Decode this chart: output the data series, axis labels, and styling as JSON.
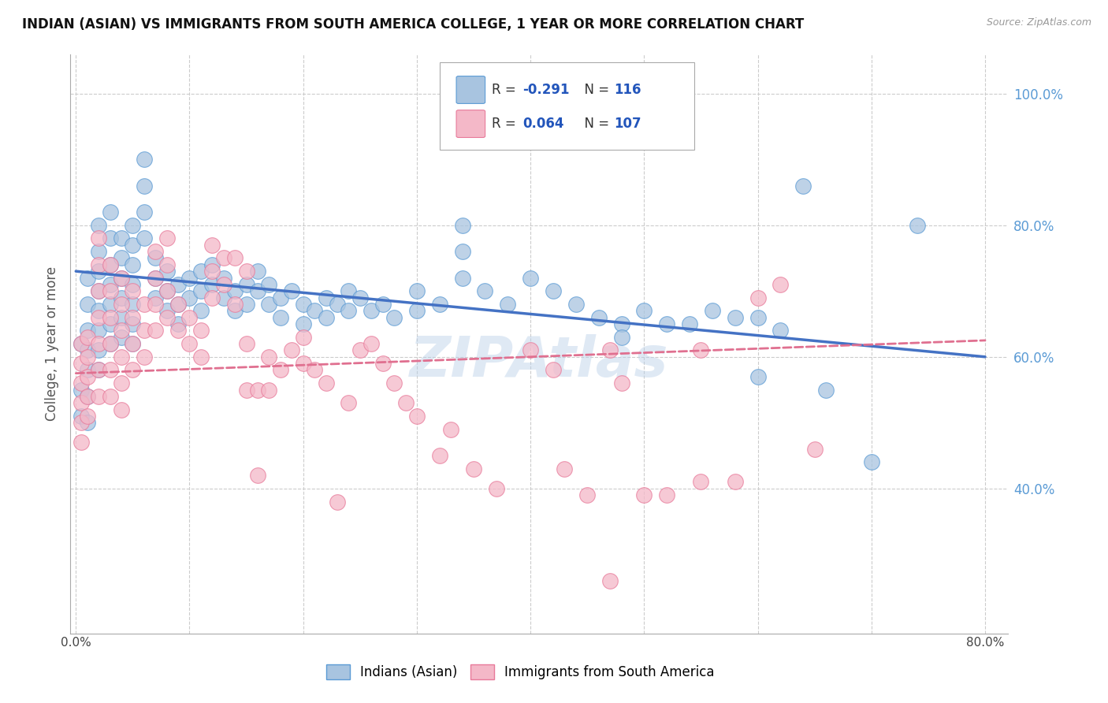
{
  "title": "INDIAN (ASIAN) VS IMMIGRANTS FROM SOUTH AMERICA COLLEGE, 1 YEAR OR MORE CORRELATION CHART",
  "source": "Source: ZipAtlas.com",
  "ylabel": "College, 1 year or more",
  "ytick_labels": [
    "40.0%",
    "60.0%",
    "80.0%",
    "100.0%"
  ],
  "ytick_vals": [
    0.4,
    0.6,
    0.8,
    1.0
  ],
  "xtick_labels": [
    "0.0%",
    "",
    "",
    "",
    "",
    "",
    "",
    "",
    "80.0%"
  ],
  "xtick_vals": [
    0.0,
    0.1,
    0.2,
    0.3,
    0.4,
    0.5,
    0.6,
    0.7,
    0.8
  ],
  "xrange": [
    -0.005,
    0.82
  ],
  "yrange": [
    0.18,
    1.06
  ],
  "legend_entries": [
    {
      "label": "Indians (Asian)",
      "color_fill": "#a8c4e0",
      "color_edge": "#5b9bd5",
      "R": "-0.291",
      "N": "116"
    },
    {
      "label": "Immigrants from South America",
      "color_fill": "#f4b8c8",
      "color_edge": "#e87a9a",
      "R": "0.064",
      "N": "107"
    }
  ],
  "trend_blue": {
    "x_start": 0.0,
    "y_start": 0.73,
    "x_end": 0.8,
    "y_end": 0.6,
    "color": "#4472c4"
  },
  "trend_pink": {
    "x_start": 0.0,
    "y_start": 0.575,
    "x_end": 0.8,
    "y_end": 0.625,
    "color": "#e07090"
  },
  "watermark": "ZIPAtlas",
  "blue_dots": [
    [
      0.005,
      0.62
    ],
    [
      0.005,
      0.55
    ],
    [
      0.005,
      0.51
    ],
    [
      0.01,
      0.72
    ],
    [
      0.01,
      0.68
    ],
    [
      0.01,
      0.64
    ],
    [
      0.01,
      0.61
    ],
    [
      0.01,
      0.58
    ],
    [
      0.01,
      0.54
    ],
    [
      0.01,
      0.5
    ],
    [
      0.02,
      0.8
    ],
    [
      0.02,
      0.76
    ],
    [
      0.02,
      0.73
    ],
    [
      0.02,
      0.7
    ],
    [
      0.02,
      0.67
    ],
    [
      0.02,
      0.64
    ],
    [
      0.02,
      0.61
    ],
    [
      0.02,
      0.58
    ],
    [
      0.03,
      0.82
    ],
    [
      0.03,
      0.78
    ],
    [
      0.03,
      0.74
    ],
    [
      0.03,
      0.71
    ],
    [
      0.03,
      0.68
    ],
    [
      0.03,
      0.65
    ],
    [
      0.03,
      0.62
    ],
    [
      0.04,
      0.78
    ],
    [
      0.04,
      0.75
    ],
    [
      0.04,
      0.72
    ],
    [
      0.04,
      0.69
    ],
    [
      0.04,
      0.66
    ],
    [
      0.04,
      0.63
    ],
    [
      0.05,
      0.8
    ],
    [
      0.05,
      0.77
    ],
    [
      0.05,
      0.74
    ],
    [
      0.05,
      0.71
    ],
    [
      0.05,
      0.68
    ],
    [
      0.05,
      0.65
    ],
    [
      0.05,
      0.62
    ],
    [
      0.06,
      0.9
    ],
    [
      0.06,
      0.86
    ],
    [
      0.06,
      0.82
    ],
    [
      0.06,
      0.78
    ],
    [
      0.07,
      0.75
    ],
    [
      0.07,
      0.72
    ],
    [
      0.07,
      0.69
    ],
    [
      0.08,
      0.73
    ],
    [
      0.08,
      0.7
    ],
    [
      0.08,
      0.67
    ],
    [
      0.09,
      0.71
    ],
    [
      0.09,
      0.68
    ],
    [
      0.09,
      0.65
    ],
    [
      0.1,
      0.72
    ],
    [
      0.1,
      0.69
    ],
    [
      0.11,
      0.73
    ],
    [
      0.11,
      0.7
    ],
    [
      0.11,
      0.67
    ],
    [
      0.12,
      0.74
    ],
    [
      0.12,
      0.71
    ],
    [
      0.13,
      0.72
    ],
    [
      0.13,
      0.69
    ],
    [
      0.14,
      0.7
    ],
    [
      0.14,
      0.67
    ],
    [
      0.15,
      0.71
    ],
    [
      0.15,
      0.68
    ],
    [
      0.16,
      0.73
    ],
    [
      0.16,
      0.7
    ],
    [
      0.17,
      0.71
    ],
    [
      0.17,
      0.68
    ],
    [
      0.18,
      0.69
    ],
    [
      0.18,
      0.66
    ],
    [
      0.19,
      0.7
    ],
    [
      0.2,
      0.68
    ],
    [
      0.2,
      0.65
    ],
    [
      0.21,
      0.67
    ],
    [
      0.22,
      0.69
    ],
    [
      0.22,
      0.66
    ],
    [
      0.23,
      0.68
    ],
    [
      0.24,
      0.7
    ],
    [
      0.24,
      0.67
    ],
    [
      0.25,
      0.69
    ],
    [
      0.26,
      0.67
    ],
    [
      0.27,
      0.68
    ],
    [
      0.28,
      0.66
    ],
    [
      0.3,
      0.7
    ],
    [
      0.3,
      0.67
    ],
    [
      0.32,
      0.68
    ],
    [
      0.34,
      0.8
    ],
    [
      0.34,
      0.76
    ],
    [
      0.34,
      0.72
    ],
    [
      0.36,
      0.7
    ],
    [
      0.38,
      0.68
    ],
    [
      0.4,
      0.72
    ],
    [
      0.42,
      0.7
    ],
    [
      0.44,
      0.68
    ],
    [
      0.46,
      0.66
    ],
    [
      0.48,
      0.65
    ],
    [
      0.48,
      0.63
    ],
    [
      0.5,
      0.67
    ],
    [
      0.52,
      0.65
    ],
    [
      0.54,
      0.65
    ],
    [
      0.56,
      0.67
    ],
    [
      0.58,
      0.66
    ],
    [
      0.6,
      0.66
    ],
    [
      0.6,
      0.57
    ],
    [
      0.62,
      0.64
    ],
    [
      0.64,
      0.86
    ],
    [
      0.66,
      0.55
    ],
    [
      0.7,
      0.44
    ],
    [
      0.74,
      0.8
    ]
  ],
  "pink_dots": [
    [
      0.005,
      0.62
    ],
    [
      0.005,
      0.59
    ],
    [
      0.005,
      0.56
    ],
    [
      0.005,
      0.53
    ],
    [
      0.005,
      0.5
    ],
    [
      0.005,
      0.47
    ],
    [
      0.01,
      0.63
    ],
    [
      0.01,
      0.6
    ],
    [
      0.01,
      0.57
    ],
    [
      0.01,
      0.54
    ],
    [
      0.01,
      0.51
    ],
    [
      0.02,
      0.78
    ],
    [
      0.02,
      0.74
    ],
    [
      0.02,
      0.7
    ],
    [
      0.02,
      0.66
    ],
    [
      0.02,
      0.62
    ],
    [
      0.02,
      0.58
    ],
    [
      0.02,
      0.54
    ],
    [
      0.03,
      0.74
    ],
    [
      0.03,
      0.7
    ],
    [
      0.03,
      0.66
    ],
    [
      0.03,
      0.62
    ],
    [
      0.03,
      0.58
    ],
    [
      0.03,
      0.54
    ],
    [
      0.04,
      0.72
    ],
    [
      0.04,
      0.68
    ],
    [
      0.04,
      0.64
    ],
    [
      0.04,
      0.6
    ],
    [
      0.04,
      0.56
    ],
    [
      0.04,
      0.52
    ],
    [
      0.05,
      0.7
    ],
    [
      0.05,
      0.66
    ],
    [
      0.05,
      0.62
    ],
    [
      0.05,
      0.58
    ],
    [
      0.06,
      0.68
    ],
    [
      0.06,
      0.64
    ],
    [
      0.06,
      0.6
    ],
    [
      0.07,
      0.76
    ],
    [
      0.07,
      0.72
    ],
    [
      0.07,
      0.68
    ],
    [
      0.07,
      0.64
    ],
    [
      0.08,
      0.78
    ],
    [
      0.08,
      0.74
    ],
    [
      0.08,
      0.7
    ],
    [
      0.08,
      0.66
    ],
    [
      0.09,
      0.68
    ],
    [
      0.09,
      0.64
    ],
    [
      0.1,
      0.66
    ],
    [
      0.1,
      0.62
    ],
    [
      0.11,
      0.64
    ],
    [
      0.11,
      0.6
    ],
    [
      0.12,
      0.77
    ],
    [
      0.12,
      0.73
    ],
    [
      0.12,
      0.69
    ],
    [
      0.13,
      0.75
    ],
    [
      0.13,
      0.71
    ],
    [
      0.14,
      0.75
    ],
    [
      0.14,
      0.68
    ],
    [
      0.15,
      0.73
    ],
    [
      0.15,
      0.62
    ],
    [
      0.15,
      0.55
    ],
    [
      0.16,
      0.55
    ],
    [
      0.16,
      0.42
    ],
    [
      0.17,
      0.6
    ],
    [
      0.17,
      0.55
    ],
    [
      0.18,
      0.58
    ],
    [
      0.19,
      0.61
    ],
    [
      0.2,
      0.63
    ],
    [
      0.2,
      0.59
    ],
    [
      0.21,
      0.58
    ],
    [
      0.22,
      0.56
    ],
    [
      0.23,
      0.38
    ],
    [
      0.24,
      0.53
    ],
    [
      0.25,
      0.61
    ],
    [
      0.26,
      0.62
    ],
    [
      0.27,
      0.59
    ],
    [
      0.28,
      0.56
    ],
    [
      0.29,
      0.53
    ],
    [
      0.3,
      0.51
    ],
    [
      0.32,
      0.45
    ],
    [
      0.33,
      0.49
    ],
    [
      0.35,
      0.43
    ],
    [
      0.37,
      0.4
    ],
    [
      0.4,
      0.61
    ],
    [
      0.42,
      0.58
    ],
    [
      0.43,
      0.43
    ],
    [
      0.45,
      0.39
    ],
    [
      0.47,
      0.26
    ],
    [
      0.47,
      0.61
    ],
    [
      0.48,
      0.56
    ],
    [
      0.5,
      0.39
    ],
    [
      0.52,
      0.39
    ],
    [
      0.55,
      0.61
    ],
    [
      0.55,
      0.41
    ],
    [
      0.58,
      0.41
    ],
    [
      0.6,
      0.69
    ],
    [
      0.62,
      0.71
    ],
    [
      0.65,
      0.46
    ]
  ]
}
